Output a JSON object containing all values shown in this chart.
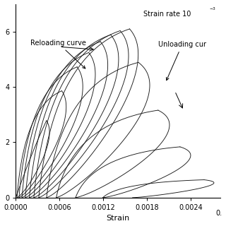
{
  "xlabel": "Strain",
  "ylabel": "",
  "xlim": [
    0.0,
    0.0028
  ],
  "ylim": [
    0.0,
    7.0
  ],
  "yticks": [
    0,
    2,
    4,
    6
  ],
  "xticks": [
    0.0,
    0.0006,
    0.0012,
    0.0018,
    0.0024
  ],
  "background_color": "#ffffff",
  "curve_color": "#1a1a1a",
  "peak_strain": 0.0016,
  "peak_stress": 6.1,
  "strain_rate_text": "Strain rate 10",
  "reloading_text": "Reloading curve",
  "unloading_text": "Unloading cur",
  "cycle_max_strains": [
    0.00042,
    0.00063,
    0.00084,
    0.001,
    0.00116,
    0.0013,
    0.00143,
    0.00156,
    0.00168,
    0.00195,
    0.00225,
    0.00258,
    0.00292
  ],
  "residual_fracs": [
    0.04,
    0.07,
    0.1,
    0.13,
    0.16,
    0.19,
    0.22,
    0.27,
    0.33,
    0.42,
    0.53,
    0.62,
    0.7
  ]
}
